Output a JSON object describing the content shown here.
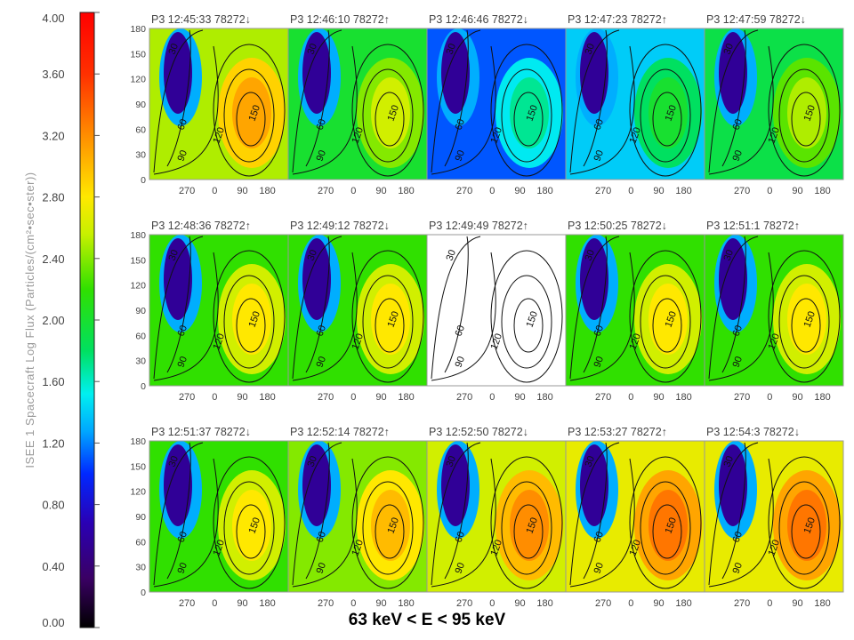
{
  "colorbar": {
    "label": "ISEE 1 Spacecraft     Log Flux (Particles/(cm²•sec•ster))",
    "ticks": [
      "4.00",
      "3.60",
      "3.20",
      "2.80",
      "2.40",
      "2.00",
      "1.60",
      "1.20",
      "0.80",
      "0.40",
      "0.00"
    ],
    "range": [
      0,
      4
    ]
  },
  "energy_label": "63 keV < E < 95 keV",
  "chart_data": {
    "type": "heatmap",
    "layout": {
      "rows": 3,
      "cols": 5
    },
    "x_ticks": [
      "270",
      "0",
      "90",
      "180"
    ],
    "y_ticks": [
      "0",
      "30",
      "60",
      "90",
      "120",
      "150",
      "180"
    ],
    "ylim": [
      0,
      180
    ],
    "contour_labels": [
      "30",
      "60",
      "90",
      "120",
      "150"
    ],
    "panels": [
      {
        "title": "P3 12:45:33 78272↓",
        "flux_level": 2.9
      },
      {
        "title": "P3 12:46:10 78272↑",
        "flux_level": 2.4
      },
      {
        "title": "P3 12:46:46 78272↓",
        "flux_level": 1.5
      },
      {
        "title": "P3 12:47:23 78272↑",
        "flux_level": 1.8
      },
      {
        "title": "P3 12:47:59 78272↓",
        "flux_level": 2.3
      },
      {
        "title": "P3 12:48:36 78272↑",
        "flux_level": 2.6
      },
      {
        "title": "P3 12:49:12 78272↓",
        "flux_level": 2.6
      },
      {
        "title": "P3 12:49:49 78272↑",
        "flux_level": null
      },
      {
        "title": "P3 12:50:25 78272↓",
        "flux_level": 2.6
      },
      {
        "title": "P3 12:51:1 78272↑",
        "flux_level": 2.6
      },
      {
        "title": "P3 12:51:37 78272↓",
        "flux_level": 2.6
      },
      {
        "title": "P3 12:52:14 78272↑",
        "flux_level": 2.8
      },
      {
        "title": "P3 12:52:50 78272↓",
        "flux_level": 3.0
      },
      {
        "title": "P3 12:53:27 78272↑",
        "flux_level": 3.1
      },
      {
        "title": "P3 12:54:3 78272↓",
        "flux_level": 3.1
      }
    ]
  }
}
